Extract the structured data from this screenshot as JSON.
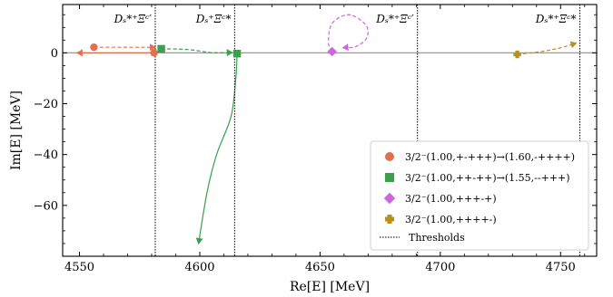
{
  "chart_data": {
    "type": "scatter",
    "xlabel": "Re[E] [MeV]",
    "ylabel": "Im[E] [MeV]",
    "xlim": [
      4543,
      4765
    ],
    "ylim": [
      -80,
      19
    ],
    "xticks": [
      4550,
      4600,
      4650,
      4700,
      4750
    ],
    "yticks": [
      0,
      -20,
      -40,
      -60
    ],
    "xtick_labels": [
      "4550",
      "4600",
      "4650",
      "4700",
      "4750"
    ],
    "ytick_labels": [
      "0",
      "−20",
      "−40",
      "−60"
    ],
    "grid": false,
    "legend_position": "lower-right",
    "zero_line": 0,
    "thresholds": [
      {
        "x": 4581.5,
        "label": "D_s^{*+}Ξ_c'",
        "label_html": "Dₛ*⁺Ξᶜ′"
      },
      {
        "x": 4614.5,
        "label": "D_s^{+}Ξ_c^{*}",
        "label_html": "Dₛ⁺Ξᶜ*"
      },
      {
        "x": 4690.5,
        "label": "D_s^{*+}Ξ_c'",
        "label_html": "Dₛ*⁺Ξᶜ′"
      },
      {
        "x": 4758.0,
        "label": "D_s^{*+}Ξ_c^{*}",
        "label_html": "Dₛ*⁺Ξᶜ*"
      }
    ],
    "threshold_legend": "Thresholds",
    "series": [
      {
        "name": "3/2⁻(1.00,+-+++)→(1.60,-++++)",
        "marker": "circle",
        "color": "#e07050",
        "segments": [
          {
            "style": "dashed",
            "points": [
              [
                4556,
                2.2
              ],
              [
                4571,
                2.2
              ],
              [
                4581.5,
                2.2
              ]
            ]
          },
          {
            "style": "solid",
            "points": [
              [
                4581,
                0
              ],
              [
                4565,
                0
              ],
              [
                4549,
                0
              ]
            ]
          }
        ],
        "start_markers": [
          [
            4556,
            2.2
          ],
          [
            4581,
            0
          ]
        ]
      },
      {
        "name": "3/2⁻(1.00,++-++)→(1.55,--+++)",
        "marker": "square",
        "color": "#3aa04a",
        "segments": [
          {
            "style": "dashed",
            "points": [
              [
                4584,
                1.6
              ],
              [
                4595,
                1.3
              ],
              [
                4605,
                0.1
              ],
              [
                4613.5,
                0.1
              ]
            ]
          },
          {
            "style": "solid",
            "points": [
              [
                4615.5,
                -0.3
              ],
              [
                4615,
                -10
              ],
              [
                4613,
                -25
              ],
              [
                4607,
                -40
              ],
              [
                4603,
                -55
              ],
              [
                4599.5,
                -75
              ]
            ]
          }
        ],
        "start_markers": [
          [
            4584,
            1.6
          ],
          [
            4615.5,
            -0.3
          ]
        ]
      },
      {
        "name": "3/2⁻(1.00,+++-+)",
        "marker": "diamond",
        "color": "#cc66dd",
        "segments": [
          {
            "style": "dashed",
            "points": [
              [
                4655,
                0.5
              ],
              [
                4653.5,
                4
              ],
              [
                4655,
                11.5
              ],
              [
                4662,
                15
              ],
              [
                4669,
                11
              ],
              [
                4669.5,
                6
              ],
              [
                4665,
                2.5
              ],
              [
                4659.5,
                2
              ]
            ]
          }
        ],
        "start_markers": [
          [
            4655,
            0.5
          ]
        ]
      },
      {
        "name": "3/2⁻(1.00,++++-)",
        "marker": "plus",
        "color": "#b8901f",
        "segments": [
          {
            "style": "dashed",
            "points": [
              [
                4732,
                -0.6
              ],
              [
                4742,
                0.5
              ],
              [
                4750,
                2
              ],
              [
                4756.5,
                3.8
              ]
            ]
          }
        ],
        "start_markers": [
          [
            4732,
            -0.6
          ]
        ]
      }
    ]
  }
}
